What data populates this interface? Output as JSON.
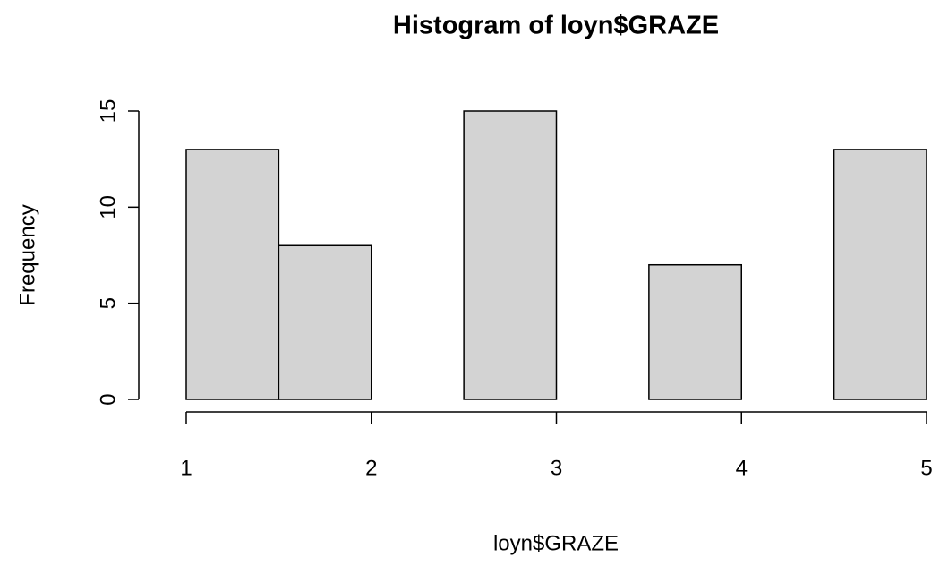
{
  "chart_data": {
    "type": "histogram",
    "title": "Histogram of loyn$GRAZE",
    "xlabel": "loyn$GRAZE",
    "ylabel": "Frequency",
    "bins": [
      1,
      1.5,
      2,
      2.5,
      3,
      3.5,
      4,
      4.5,
      5
    ],
    "values": [
      13,
      8,
      0,
      15,
      0,
      7,
      0,
      13
    ],
    "color": "#d3d3d3",
    "xlim": [
      1,
      5
    ],
    "xticks": [
      1,
      2,
      3,
      4,
      5
    ],
    "ylim": [
      0,
      15
    ],
    "yticks": [
      0,
      5,
      10,
      15
    ]
  }
}
